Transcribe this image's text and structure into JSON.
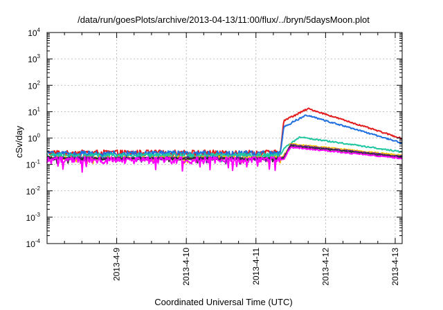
{
  "chart_data": {
    "type": "line",
    "title": "/data/run/goesPlots/archive/2013-04-13/11:00/flux/../bryn/5daysMoon.plot",
    "xlabel": "Coordinated Universal Time (UTC)",
    "ylabel": "cSv/day",
    "yscale": "log",
    "ylim_exp": [
      -4,
      4
    ],
    "ytick_base": "10",
    "ytick_exponents": [
      "-4",
      "-3",
      "-2",
      "-1",
      "0",
      "1",
      "2",
      "3",
      "4"
    ],
    "xlim_days": [
      0,
      5.1
    ],
    "xticks": [
      {
        "day": 1,
        "label": "2013-4-9"
      },
      {
        "day": 2,
        "label": "2013-4-10"
      },
      {
        "day": 3,
        "label": "2013-4-11"
      },
      {
        "day": 4,
        "label": "2013-4-12"
      },
      {
        "day": 5,
        "label": "2013-4-13"
      }
    ],
    "grid": true,
    "legend": "none",
    "event_onset_day": 3.35,
    "series": [
      {
        "color": "#e41a1c",
        "baseline": 0.28,
        "noise": 0.25,
        "peak": 13,
        "peak_day": 3.75,
        "end": 0.95
      },
      {
        "color": "#1f6fe0",
        "baseline": 0.26,
        "noise": 0.25,
        "peak": 7.5,
        "peak_day": 3.72,
        "end": 0.65
      },
      {
        "color": "#1fc7a0",
        "baseline": 0.22,
        "noise": 0.2,
        "peak": 1.1,
        "peak_day": 3.62,
        "end": 0.3
      },
      {
        "color": "#f5c400",
        "baseline": 0.18,
        "noise": 0.15,
        "peak": 0.6,
        "peak_day": 3.5,
        "end": 0.22
      },
      {
        "color": "#6a1fa0",
        "baseline": 0.17,
        "noise": 0.15,
        "peak": 0.55,
        "peak_day": 3.5,
        "end": 0.2
      },
      {
        "color": "#333333",
        "baseline": 0.165,
        "noise": 0.12,
        "peak": 0.5,
        "peak_day": 3.5,
        "end": 0.19
      },
      {
        "color": "#ff00ff",
        "baseline": 0.15,
        "noise": 0.3,
        "peak": 0.45,
        "peak_day": 3.5,
        "end": 0.17
      }
    ]
  }
}
